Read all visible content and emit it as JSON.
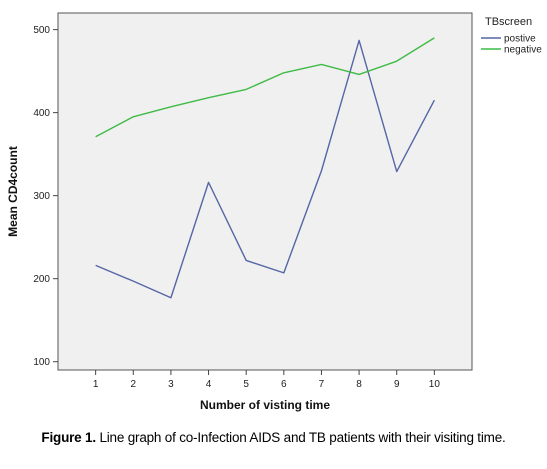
{
  "caption": {
    "figure_label": "Figure 1.",
    "text": " Line graph of co-Infection AIDS and TB patients with their visiting time."
  },
  "chart_data": {
    "type": "line",
    "title": "",
    "xlabel": "Number of visting time",
    "ylabel": "Mean CD4count",
    "x": [
      1,
      2,
      3,
      4,
      5,
      6,
      7,
      8,
      9,
      10
    ],
    "xlim": [
      0,
      11
    ],
    "ylim": [
      90,
      520
    ],
    "yticks": [
      100,
      200,
      300,
      400,
      500
    ],
    "grid": false,
    "legend": {
      "title": "TBscreen",
      "placement": "top-right, outside plot"
    },
    "series": [
      {
        "name": "postive",
        "color": "#5466a5",
        "values": [
          216,
          197,
          177,
          316,
          222,
          207,
          330,
          487,
          329,
          415
        ]
      },
      {
        "name": "negative",
        "color": "#3fbb46",
        "values": [
          371,
          395,
          407,
          418,
          428,
          448,
          458,
          446,
          462,
          490
        ]
      }
    ],
    "plot_background": "#f0f0f0"
  }
}
